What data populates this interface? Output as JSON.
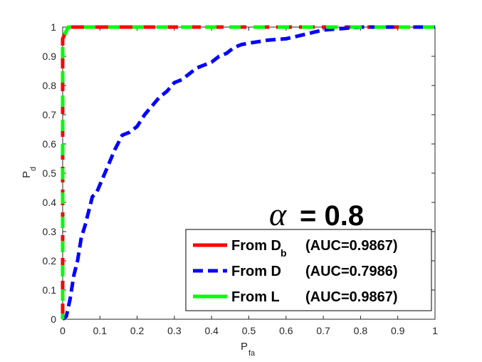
{
  "chart_data": {
    "type": "line",
    "title": "",
    "xlabel": {
      "main": "P",
      "sub": "fa"
    },
    "ylabel": {
      "main": "P",
      "sub": "d"
    },
    "xlim": [
      0,
      1
    ],
    "ylim": [
      0,
      1
    ],
    "xticks": [
      "0",
      "0.1",
      "0.2",
      "0.3",
      "0.4",
      "0.5",
      "0.6",
      "0.7",
      "0.8",
      "0.9",
      "1"
    ],
    "yticks": [
      "0",
      "0.1",
      "0.2",
      "0.3",
      "0.4",
      "0.5",
      "0.6",
      "0.7",
      "0.8",
      "0.9",
      "1"
    ],
    "grid": false,
    "legend_position": "bottom-right",
    "annotation": {
      "symbol": "α",
      "text": "= 0.8"
    },
    "series": [
      {
        "name": "From Db (AUC=0.9867)",
        "legend": {
          "main": "From D",
          "sub": "b",
          "auc": "(AUC=0.9867)"
        },
        "color": "#ff0000",
        "style": "dashed",
        "x": [
          0,
          0,
          0.015,
          1
        ],
        "y": [
          0,
          0.96,
          1,
          1
        ]
      },
      {
        "name": "From D (AUC=0.7986)",
        "legend": {
          "main": "From D",
          "sub": "",
          "auc": "(AUC=0.7986)"
        },
        "color": "#0000ff",
        "style": "dashed",
        "x": [
          0,
          0.01,
          0.02,
          0.03,
          0.04,
          0.05,
          0.06,
          0.07,
          0.08,
          0.09,
          0.1,
          0.12,
          0.14,
          0.16,
          0.18,
          0.2,
          0.22,
          0.24,
          0.26,
          0.28,
          0.3,
          0.32,
          0.34,
          0.36,
          0.38,
          0.4,
          0.42,
          0.44,
          0.46,
          0.48,
          0.5,
          0.55,
          0.6,
          0.65,
          0.7,
          0.75,
          0.8,
          0.85,
          0.9,
          0.95,
          1
        ],
        "y": [
          0,
          0.01,
          0.07,
          0.15,
          0.2,
          0.28,
          0.32,
          0.37,
          0.42,
          0.43,
          0.46,
          0.52,
          0.58,
          0.63,
          0.64,
          0.66,
          0.7,
          0.73,
          0.76,
          0.78,
          0.81,
          0.82,
          0.84,
          0.86,
          0.87,
          0.88,
          0.9,
          0.91,
          0.93,
          0.94,
          0.945,
          0.955,
          0.96,
          0.975,
          0.99,
          0.995,
          1,
          1,
          1,
          1,
          1
        ]
      },
      {
        "name": "From L (AUC=0.9867)",
        "legend": {
          "main": "From L",
          "sub": "",
          "auc": "(AUC=0.9867)"
        },
        "color": "#00ff00",
        "style": "dashed",
        "x": [
          0,
          0,
          0.015,
          1
        ],
        "y": [
          0,
          0.96,
          1,
          1
        ]
      }
    ]
  }
}
